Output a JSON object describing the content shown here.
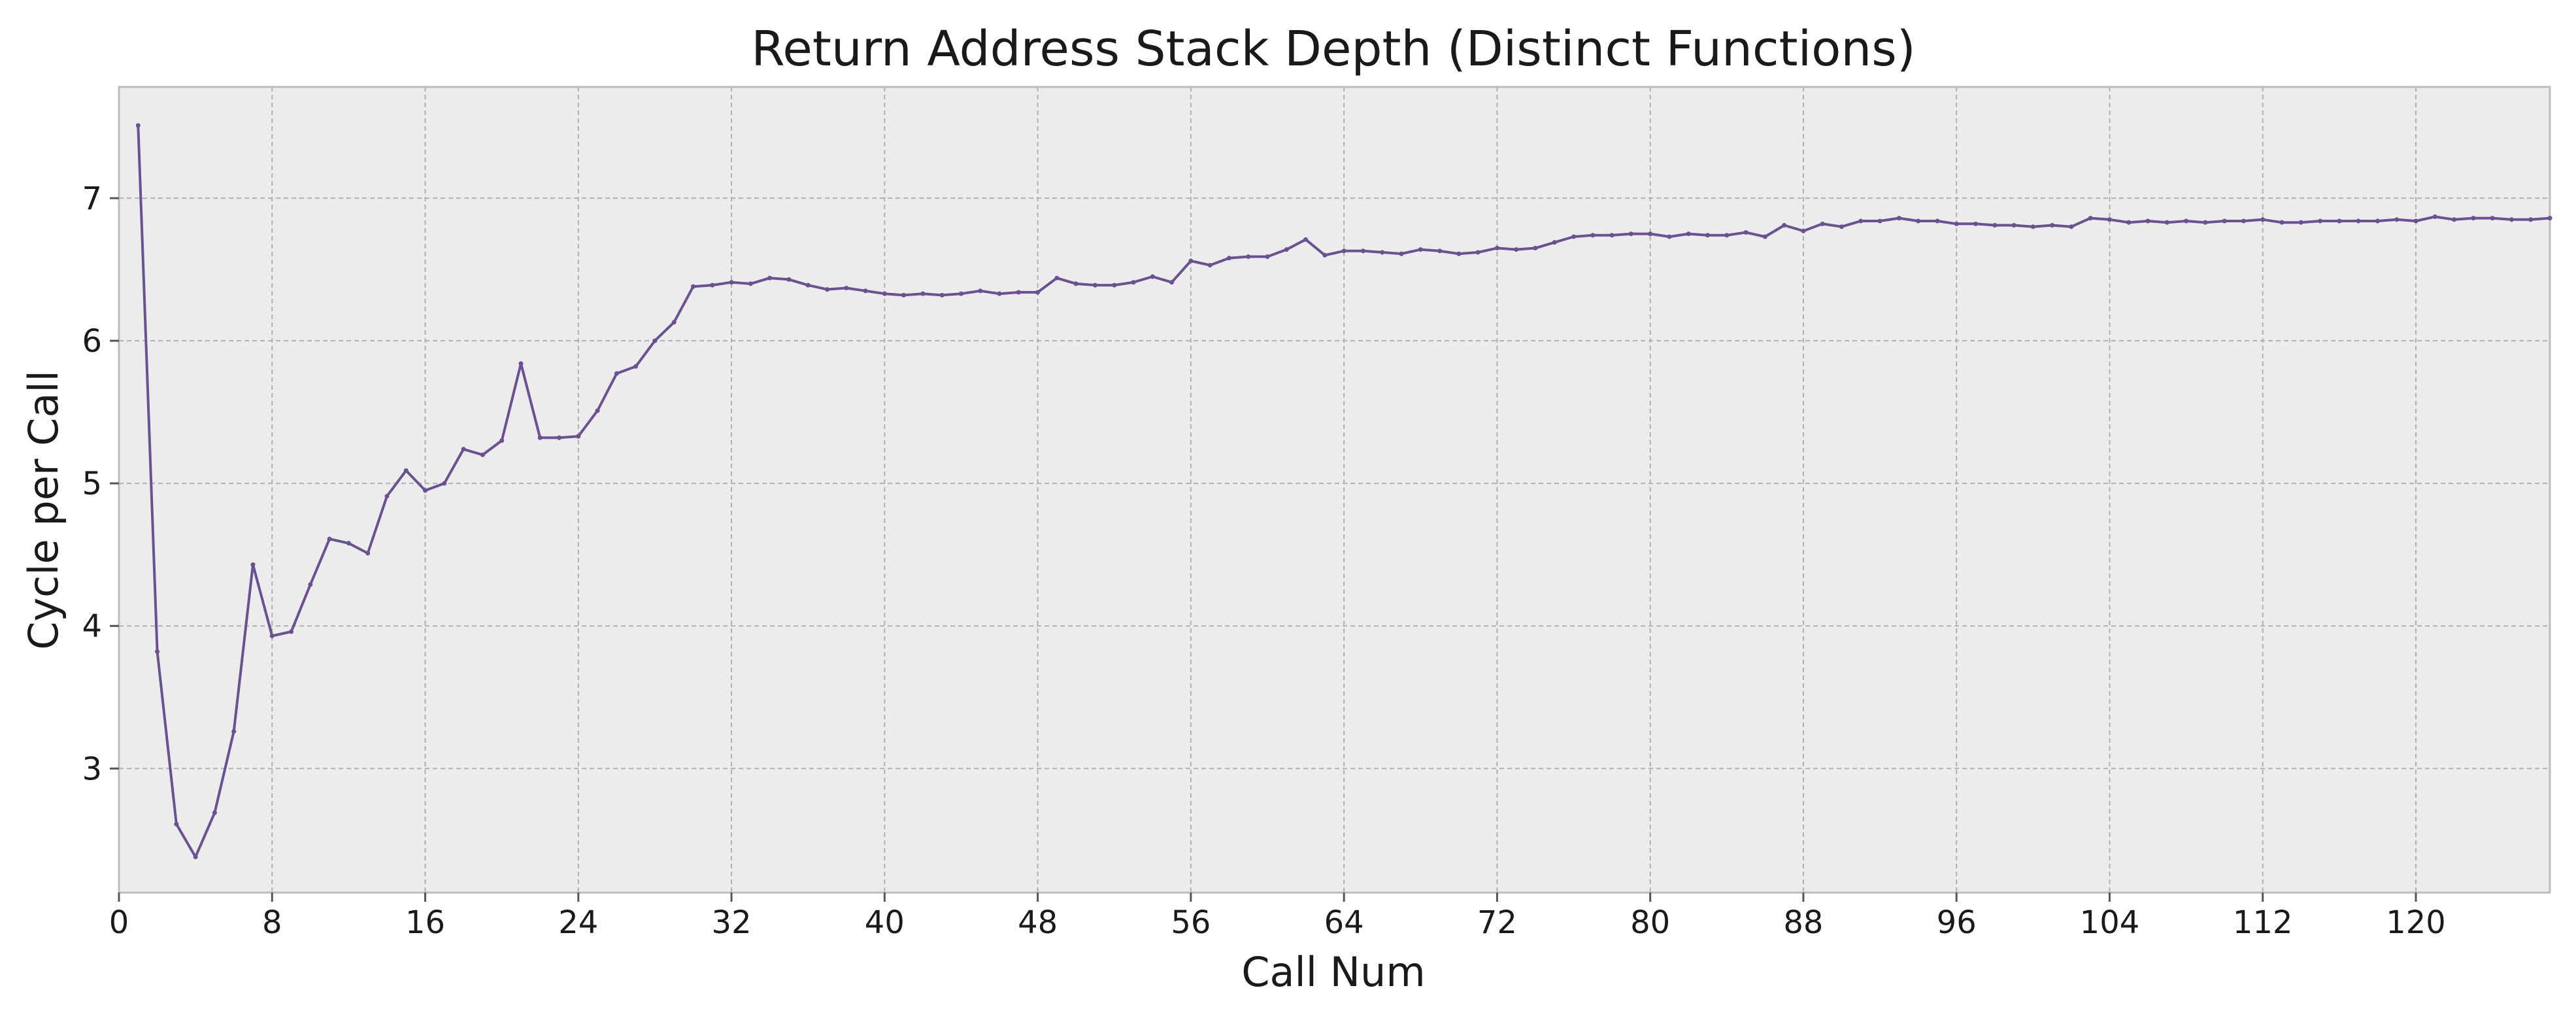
{
  "chart_data": {
    "type": "line",
    "title": "Return Address Stack Depth (Distinct Functions)",
    "xlabel": "Call Num",
    "ylabel": "Cycle per Call",
    "xlim": [
      0,
      127
    ],
    "ylim": [
      2.13,
      7.78
    ],
    "xticks": [
      0,
      8,
      16,
      24,
      32,
      40,
      48,
      56,
      64,
      72,
      80,
      88,
      96,
      104,
      112,
      120
    ],
    "yticks": [
      3,
      4,
      5,
      6,
      7
    ],
    "grid": true,
    "legend": "none",
    "colors": {
      "line": "#6a5192",
      "plot_background": "#ececec",
      "grid": "#b0b0b0",
      "frame": "#bcbcbc"
    },
    "series": [
      {
        "x": [
          1,
          2,
          3,
          4,
          5,
          6,
          7,
          8,
          9,
          10,
          11,
          12,
          13,
          14,
          15,
          16,
          17,
          18,
          19,
          20,
          21,
          22,
          23,
          24,
          25,
          26,
          27,
          28,
          29,
          30,
          31,
          32,
          33,
          34,
          35,
          36,
          37,
          38,
          39,
          40,
          41,
          42,
          43,
          44,
          45,
          46,
          47,
          48,
          49,
          50,
          51,
          52,
          53,
          54,
          55,
          56,
          57,
          58,
          59,
          60,
          61,
          62,
          63,
          64,
          65,
          66,
          67,
          68,
          69,
          70,
          71,
          72,
          73,
          74,
          75,
          76,
          77,
          78,
          79,
          80,
          81,
          82,
          83,
          84,
          85,
          86,
          87,
          88,
          89,
          90,
          91,
          92,
          93,
          94,
          95,
          96,
          97,
          98,
          99,
          100,
          101,
          102,
          103,
          104,
          105,
          106,
          107,
          108,
          109,
          110,
          111,
          112,
          113,
          114,
          115,
          116,
          117,
          118,
          119,
          120,
          121,
          122,
          123,
          124,
          125,
          126,
          127
        ],
        "values": [
          7.51,
          3.82,
          2.61,
          2.38,
          2.69,
          3.26,
          4.43,
          3.93,
          3.96,
          4.29,
          4.61,
          4.58,
          4.51,
          4.91,
          5.09,
          4.95,
          5.0,
          5.24,
          5.2,
          5.3,
          5.84,
          5.32,
          5.32,
          5.33,
          5.51,
          5.77,
          5.82,
          6.0,
          6.13,
          6.38,
          6.39,
          6.41,
          6.4,
          6.44,
          6.43,
          6.39,
          6.36,
          6.37,
          6.35,
          6.33,
          6.32,
          6.33,
          6.32,
          6.33,
          6.35,
          6.33,
          6.34,
          6.34,
          6.44,
          6.4,
          6.39,
          6.39,
          6.41,
          6.45,
          6.41,
          6.56,
          6.53,
          6.58,
          6.59,
          6.59,
          6.64,
          6.71,
          6.6,
          6.63,
          6.63,
          6.62,
          6.61,
          6.64,
          6.63,
          6.61,
          6.62,
          6.65,
          6.64,
          6.65,
          6.69,
          6.73,
          6.74,
          6.74,
          6.75,
          6.75,
          6.73,
          6.75,
          6.74,
          6.74,
          6.76,
          6.73,
          6.81,
          6.77,
          6.82,
          6.8,
          6.84,
          6.84,
          6.86,
          6.84,
          6.84,
          6.82,
          6.82,
          6.81,
          6.81,
          6.8,
          6.81,
          6.8,
          6.86,
          6.85,
          6.83,
          6.84,
          6.83,
          6.84,
          6.83,
          6.84,
          6.84,
          6.85,
          6.83,
          6.83,
          6.84,
          6.84,
          6.84,
          6.84,
          6.85,
          6.84,
          6.87,
          6.85,
          6.86,
          6.86,
          6.85,
          6.85,
          6.86
        ]
      }
    ]
  }
}
